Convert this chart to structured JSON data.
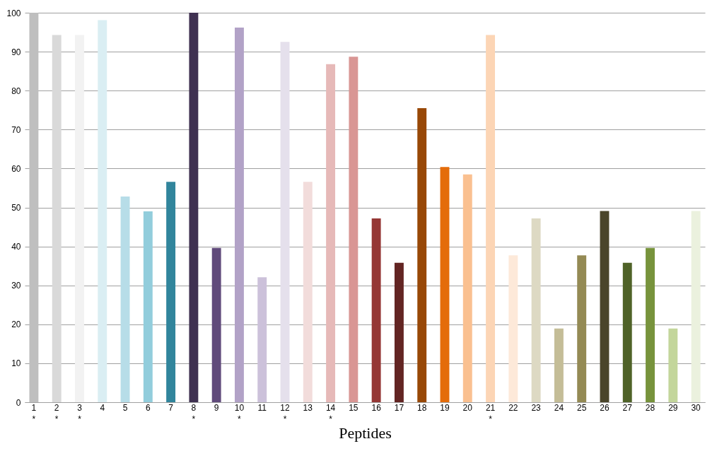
{
  "chart_data": {
    "type": "bar",
    "xlabel": "Peptides",
    "categories": [
      "1\n*",
      "2\n*",
      "3\n*",
      "4",
      "5",
      "6",
      "7",
      "8\n*",
      "9",
      "10\n*",
      "11",
      "12\n*",
      "13",
      "14\n*",
      "15",
      "16",
      "17",
      "18",
      "19",
      "20",
      "21\n*",
      "22",
      "23",
      "24",
      "25",
      "26",
      "27",
      "28",
      "29",
      "30"
    ],
    "values": [
      100,
      94.3,
      94.3,
      98.1,
      52.8,
      49,
      56.6,
      100,
      39.6,
      96.2,
      32.1,
      92.5,
      56.6,
      86.8,
      88.7,
      47.2,
      35.8,
      75.5,
      60.4,
      58.5,
      94.3,
      37.7,
      47.2,
      18.9,
      37.7,
      49.1,
      35.8,
      39.6,
      18.9,
      49.1
    ],
    "colors": [
      "#bfbfbf",
      "#d9d9d9",
      "#f2f2f2",
      "#daeef3",
      "#b7dde8",
      "#92cddc",
      "#31859c",
      "#3f3151",
      "#604a7b",
      "#b2a2c7",
      "#ccc1da",
      "#e5e0ec",
      "#f2dcdb",
      "#e6b9b8",
      "#d99694",
      "#953735",
      "#632523",
      "#984807",
      "#e46c0a",
      "#fac090",
      "#fcd5b5",
      "#fde9d9",
      "#ddd9c3",
      "#c4bd97",
      "#948a54",
      "#4a452a",
      "#4f6228",
      "#77933c",
      "#c3d69b",
      "#ebf1de"
    ],
    "ylim": [
      0,
      100
    ],
    "yticks": [
      0,
      10,
      20,
      30,
      40,
      50,
      60,
      70,
      80,
      90,
      100
    ],
    "grid": "y",
    "legend": false
  }
}
